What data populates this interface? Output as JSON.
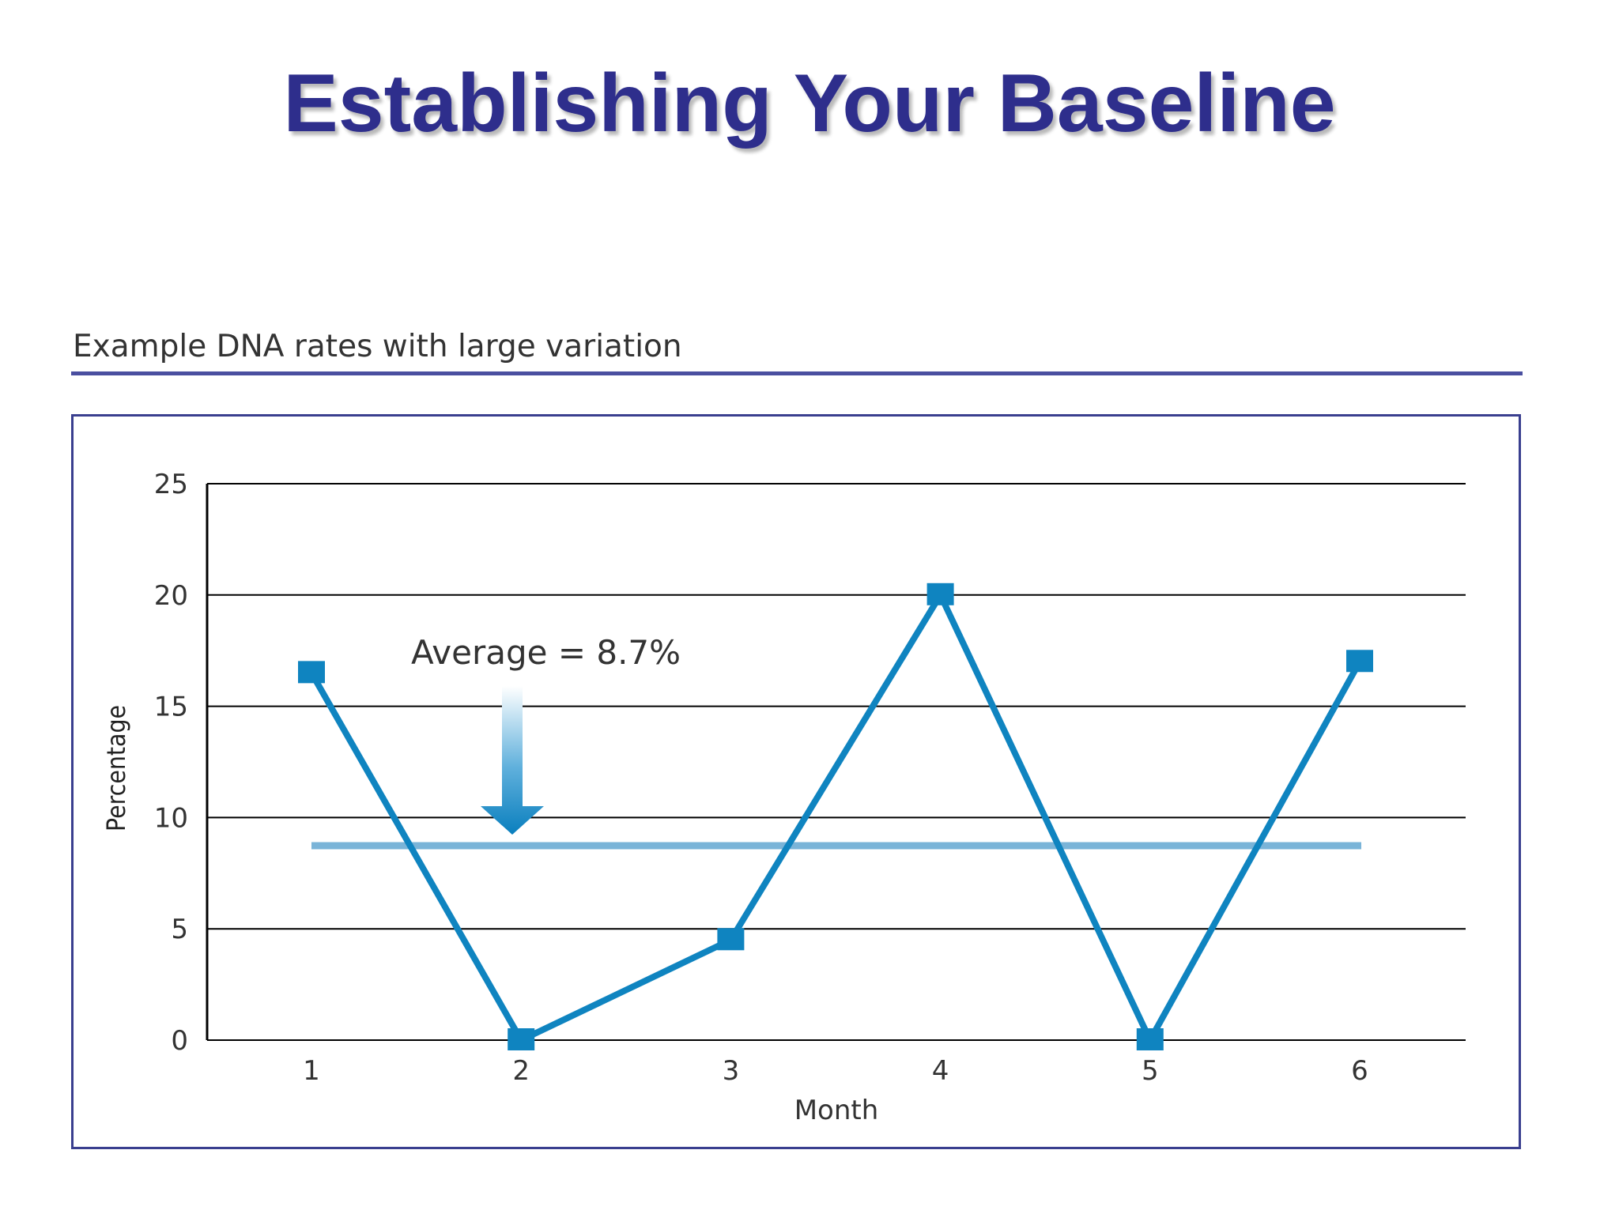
{
  "slide": {
    "title": "Establishing Your Baseline"
  },
  "chart_heading": "Example DNA rates with large variation",
  "colors": {
    "title": "#2e2e8c",
    "rule": "#4a4fa0",
    "series": "#0f84c0",
    "average_line": "#7ab4d8",
    "grid": "#000000"
  },
  "chart_data": {
    "type": "line",
    "title": "Example DNA rates with large variation",
    "xlabel": "Month",
    "ylabel": "Percentage",
    "x": [
      1,
      2,
      3,
      4,
      5,
      6
    ],
    "x_tick_labels": [
      "1",
      "2",
      "3",
      "4",
      "5",
      "6"
    ],
    "y_ticks": [
      0,
      5,
      10,
      15,
      20,
      25
    ],
    "ylim": [
      0,
      25
    ],
    "grid": true,
    "series": [
      {
        "values": [
          16.5,
          0,
          4.5,
          20,
          0,
          17
        ]
      }
    ],
    "average": {
      "value": 8.7,
      "label": "Average = 8.7%"
    }
  }
}
